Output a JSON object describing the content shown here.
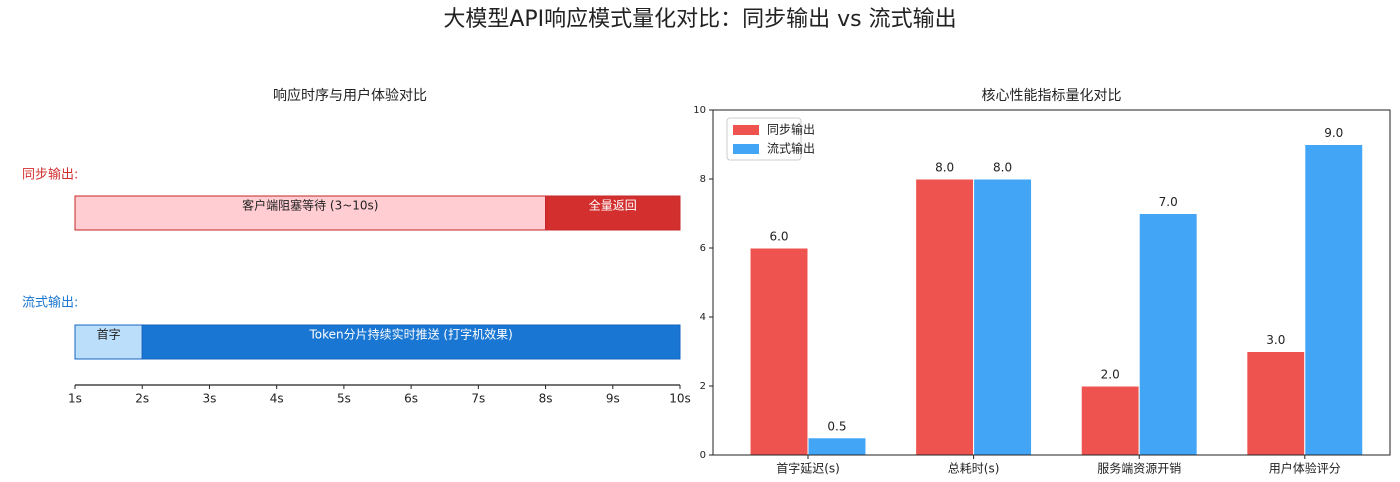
{
  "title": "大模型API响应模式量化对比：同步输出 vs 流式输出",
  "chart_data": [
    {
      "type": "timeline",
      "title": "响应时序与用户体验对比",
      "xlim": [
        1,
        10
      ],
      "xticks": [
        {
          "value": 1,
          "label": "1s"
        },
        {
          "value": 2,
          "label": "2s"
        },
        {
          "value": 3,
          "label": "3s"
        },
        {
          "value": 4,
          "label": "4s"
        },
        {
          "value": 5,
          "label": "5s"
        },
        {
          "value": 6,
          "label": "6s"
        },
        {
          "value": 7,
          "label": "7s"
        },
        {
          "value": 8,
          "label": "8s"
        },
        {
          "value": 9,
          "label": "9s"
        },
        {
          "value": 10,
          "label": "10s"
        }
      ],
      "rows": [
        {
          "name": "同步输出:",
          "color": "#d32f2f",
          "edge_color": "#c62828",
          "segments": [
            {
              "label": "客户端阻塞等待 (3~10s)",
              "start": 1,
              "end": 8,
              "color": "#ffcdd2",
              "text_color": "#222222"
            },
            {
              "label": "全量返回",
              "start": 8,
              "end": 10,
              "color": "#d32f2f",
              "text_color": "#ffffff"
            }
          ]
        },
        {
          "name": "流式输出:",
          "color": "#1976d2",
          "edge_color": "#1565c0",
          "segments": [
            {
              "label": "首字",
              "start": 1,
              "end": 2,
              "color": "#bbdefb",
              "text_color": "#222222"
            },
            {
              "label": "Token分片持续实时推送 (打字机效果)",
              "start": 2,
              "end": 10,
              "color": "#1976d2",
              "text_color": "#ffffff"
            }
          ]
        }
      ]
    },
    {
      "type": "bar",
      "title": "核心性能指标量化对比",
      "categories": [
        "首字延迟(s)",
        "总耗时(s)",
        "服务端资源开销",
        "用户体验评分"
      ],
      "series": [
        {
          "name": "同步输出",
          "color": "#ef5350",
          "values": [
            6,
            8,
            2,
            3
          ],
          "value_labels": [
            "6.0",
            "8.0",
            "2.0",
            "3.0"
          ]
        },
        {
          "name": "流式输出",
          "color": "#42a5f5",
          "values": [
            0.5,
            8,
            7,
            9
          ],
          "value_labels": [
            "0.5",
            "8.0",
            "7.0",
            "9.0"
          ]
        }
      ],
      "ylim": [
        0,
        10
      ],
      "yticks": [
        0,
        2,
        4,
        6,
        8,
        10
      ],
      "legend": "upper-left"
    }
  ]
}
